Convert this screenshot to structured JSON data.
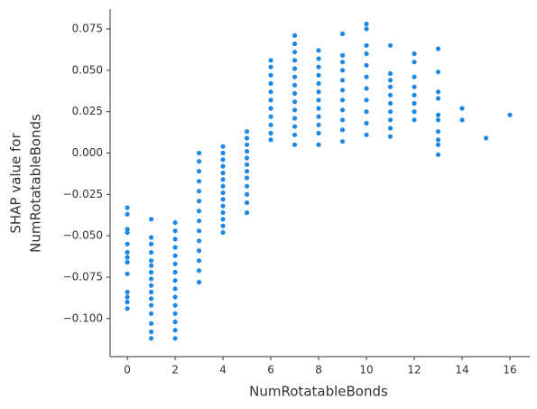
{
  "chart_data": {
    "type": "scatter",
    "xlabel": "NumRotatableBonds",
    "ylabel": [
      "SHAP value for",
      "NumRotatableBonds"
    ],
    "color": "#1e88e5",
    "xlim": [
      -0.72,
      16.83
    ],
    "ylim": [
      -0.123,
      0.087
    ],
    "xticks": [
      0,
      2,
      4,
      6,
      8,
      10,
      12,
      14,
      16
    ],
    "yticks": [
      {
        "value": -0.1,
        "label": "−0.100"
      },
      {
        "value": -0.075,
        "label": "−0.075"
      },
      {
        "value": -0.05,
        "label": "−0.050"
      },
      {
        "value": -0.025,
        "label": "−0.025"
      },
      {
        "value": 0,
        "label": "0.000"
      },
      {
        "value": 0.025,
        "label": "0.025"
      },
      {
        "value": 0.05,
        "label": "0.050"
      },
      {
        "value": 0.075,
        "label": "0.075"
      }
    ],
    "x": [
      0,
      0,
      0,
      0,
      0,
      0,
      0,
      0,
      0,
      0,
      0,
      0,
      0,
      1,
      1,
      1,
      1,
      1,
      1,
      1,
      1,
      1,
      1,
      1,
      1,
      1,
      1,
      1,
      1,
      2,
      2,
      2,
      2,
      2,
      2,
      2,
      2,
      2,
      2,
      2,
      2,
      2,
      2,
      2,
      3,
      3,
      3,
      3,
      3,
      3,
      3,
      3,
      3,
      3,
      3,
      3,
      3,
      3,
      4,
      4,
      4,
      4,
      4,
      4,
      4,
      4,
      4,
      4,
      4,
      4,
      4,
      4,
      5,
      5,
      5,
      5,
      5,
      5,
      5,
      5,
      5,
      5,
      5,
      5,
      6,
      6,
      6,
      6,
      6,
      6,
      6,
      6,
      6,
      6,
      6,
      7,
      7,
      7,
      7,
      7,
      7,
      7,
      7,
      7,
      7,
      7,
      7,
      7,
      7,
      8,
      8,
      8,
      8,
      8,
      8,
      8,
      8,
      8,
      8,
      8,
      8,
      9,
      9,
      9,
      9,
      9,
      9,
      9,
      9,
      9,
      9,
      9,
      10,
      10,
      10,
      10,
      10,
      10,
      10,
      10,
      10,
      10,
      10,
      11,
      11,
      11,
      11,
      11,
      11,
      11,
      11,
      11,
      11,
      12,
      12,
      12,
      12,
      12,
      12,
      12,
      12,
      13,
      13,
      13,
      13,
      13,
      13,
      13,
      13,
      13,
      13,
      14,
      14,
      15,
      16
    ],
    "values": [
      -0.033,
      -0.037,
      -0.046,
      -0.048,
      -0.055,
      -0.06,
      -0.063,
      -0.066,
      -0.073,
      -0.084,
      -0.087,
      -0.09,
      -0.094,
      -0.04,
      -0.051,
      -0.055,
      -0.06,
      -0.065,
      -0.068,
      -0.072,
      -0.076,
      -0.08,
      -0.084,
      -0.088,
      -0.092,
      -0.097,
      -0.103,
      -0.108,
      -0.112,
      -0.042,
      -0.047,
      -0.052,
      -0.057,
      -0.062,
      -0.067,
      -0.072,
      -0.077,
      -0.082,
      -0.087,
      -0.092,
      -0.097,
      -0.102,
      -0.107,
      -0.112,
      0.0,
      -0.005,
      -0.011,
      -0.017,
      -0.023,
      -0.029,
      -0.035,
      -0.041,
      -0.047,
      -0.053,
      -0.059,
      -0.065,
      -0.071,
      -0.078,
      0.004,
      0.0,
      -0.004,
      -0.008,
      -0.012,
      -0.016,
      -0.02,
      -0.024,
      -0.028,
      -0.032,
      -0.036,
      -0.04,
      -0.044,
      -0.048,
      0.013,
      0.009,
      0.005,
      0.001,
      -0.003,
      -0.007,
      -0.011,
      -0.015,
      -0.02,
      -0.025,
      -0.03,
      -0.036,
      0.056,
      0.052,
      0.047,
      0.042,
      0.037,
      0.032,
      0.027,
      0.022,
      0.017,
      0.012,
      0.008,
      0.071,
      0.066,
      0.061,
      0.056,
      0.051,
      0.046,
      0.041,
      0.036,
      0.031,
      0.026,
      0.021,
      0.016,
      0.011,
      0.005,
      0.062,
      0.057,
      0.052,
      0.047,
      0.042,
      0.037,
      0.032,
      0.027,
      0.022,
      0.017,
      0.012,
      0.005,
      0.072,
      0.059,
      0.055,
      0.05,
      0.044,
      0.038,
      0.032,
      0.026,
      0.02,
      0.014,
      0.007,
      0.078,
      0.075,
      0.065,
      0.06,
      0.053,
      0.046,
      0.039,
      0.032,
      0.025,
      0.018,
      0.011,
      0.065,
      0.048,
      0.044,
      0.04,
      0.035,
      0.03,
      0.025,
      0.02,
      0.015,
      0.01,
      0.06,
      0.055,
      0.046,
      0.04,
      0.035,
      0.03,
      0.025,
      0.02,
      0.063,
      0.049,
      0.037,
      0.033,
      0.023,
      0.02,
      0.013,
      0.008,
      0.005,
      -0.001,
      0.027,
      0.02,
      0.009,
      0.023
    ]
  }
}
